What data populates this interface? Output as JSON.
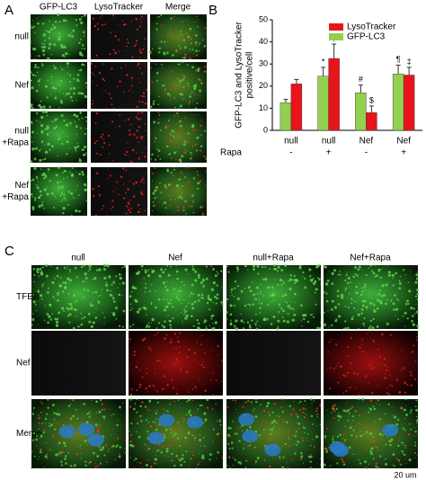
{
  "panel_labels": [
    "A",
    "B",
    "C"
  ],
  "panel_a": {
    "columns": [
      "GFP-LC3",
      "LysoTracker",
      "Merge"
    ],
    "rows": [
      [
        "null"
      ],
      [
        "Nef"
      ],
      [
        "null",
        "+Rapa"
      ],
      [
        "Nef",
        "+Rapa"
      ]
    ]
  },
  "chart_data": {
    "type": "bar",
    "ylabel": [
      "GFP-LC3 and LysoTracker",
      "positive/cell"
    ],
    "categories": [
      "null",
      "null",
      "Nef",
      "Nef"
    ],
    "rapa_label": "Rapa",
    "rapa": [
      "-",
      "+",
      "-",
      "+"
    ],
    "series": [
      {
        "name": "GFP-LC3",
        "color": "#92d050",
        "values": [
          12.5,
          24.5,
          17,
          25.5
        ],
        "errors": [
          1.5,
          4,
          3.5,
          4
        ],
        "annotations": [
          null,
          "*",
          "#",
          "¶"
        ]
      },
      {
        "name": "LysoTracker",
        "color": "#e8141b",
        "values": [
          21,
          32.5,
          8,
          25
        ],
        "errors": [
          2,
          6.5,
          3,
          3.5
        ],
        "annotations": [
          null,
          "†",
          "$",
          "‡"
        ]
      }
    ],
    "ylim": [
      0,
      50
    ],
    "yticks": [
      0,
      10,
      20,
      30,
      40,
      50
    ],
    "legend": "upper right"
  },
  "panel_c": {
    "columns": [
      "null",
      "Nef",
      "null+Rapa",
      "Nef+Rapa"
    ],
    "rows": [
      "TFEB",
      "Nef",
      "Merge"
    ],
    "scale_bar": "20 um"
  }
}
